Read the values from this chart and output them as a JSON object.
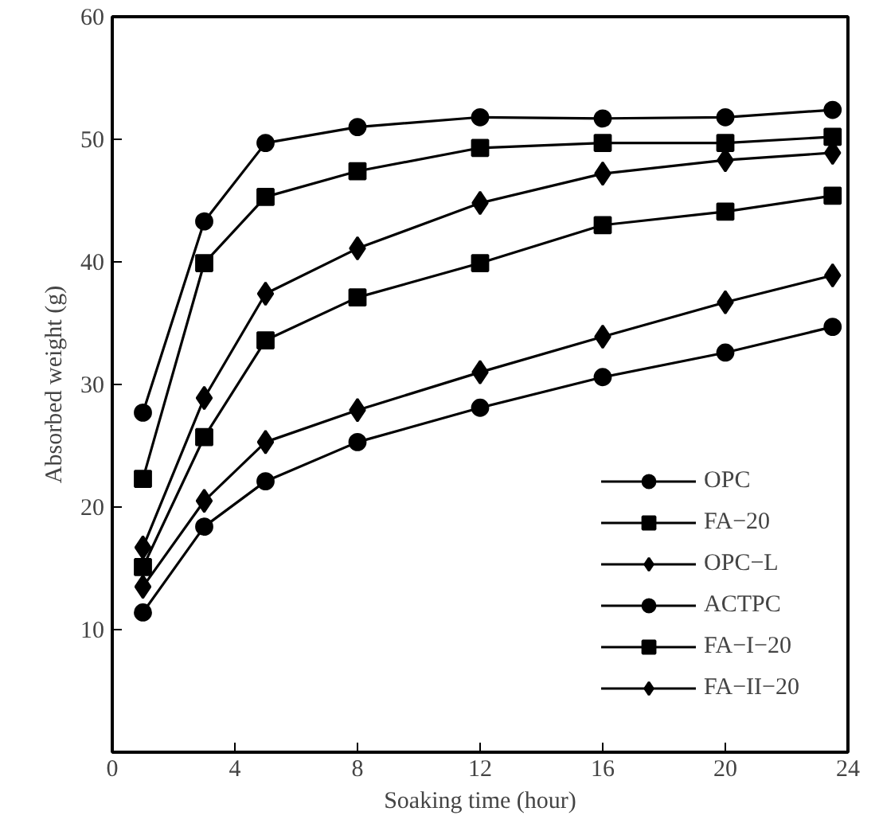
{
  "chart_data": {
    "type": "line",
    "xlabel": "Soaking time (hour)",
    "ylabel": "Absorbed weight (g)",
    "xlim": [
      0,
      24
    ],
    "ylim": [
      0,
      60
    ],
    "xticks": [
      0,
      4,
      8,
      12,
      16,
      20,
      24
    ],
    "yticks": [
      10,
      20,
      30,
      40,
      50,
      60
    ],
    "grid": false,
    "legend": "bottom right",
    "line_style": "solid",
    "x": [
      1,
      3,
      5,
      8,
      12,
      16,
      20,
      23.5
    ],
    "series": [
      {
        "name": "OPC",
        "color": "#000000",
        "marker": "circle",
        "values": [
          27.7,
          43.3,
          49.7,
          51.0,
          51.8,
          51.7,
          51.8,
          52.4
        ]
      },
      {
        "name": "FA−20",
        "color": "#000000",
        "marker": "square",
        "values": [
          22.3,
          39.9,
          45.3,
          47.4,
          49.3,
          49.7,
          49.7,
          50.2
        ]
      },
      {
        "name": "OPC−L",
        "color": "#000000",
        "marker": "diamond",
        "values": [
          16.7,
          28.9,
          37.4,
          41.1,
          44.8,
          47.2,
          48.3,
          48.9
        ]
      },
      {
        "name": "ACTPC",
        "color": "#000000",
        "marker": "circle",
        "values": [
          11.4,
          18.4,
          22.1,
          25.3,
          28.1,
          30.6,
          32.6,
          34.7
        ]
      },
      {
        "name": "FA−I−20",
        "color": "#000000",
        "marker": "square",
        "values": [
          15.1,
          25.7,
          33.6,
          37.1,
          39.9,
          43.0,
          44.1,
          45.4
        ]
      },
      {
        "name": "FA−II−20",
        "color": "#000000",
        "marker": "diamond",
        "values": [
          13.5,
          20.5,
          25.3,
          27.9,
          31.0,
          33.9,
          36.7,
          38.9
        ]
      }
    ]
  }
}
